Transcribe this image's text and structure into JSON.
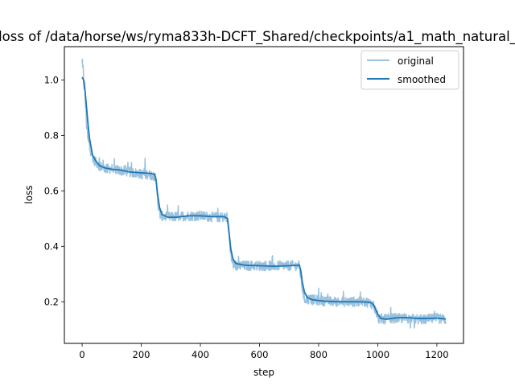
{
  "chart_data": {
    "type": "line",
    "title": "loss of /data/horse/ws/ryma833h-DCFT_Shared/checkpoints/a1_math_natural_",
    "xlabel": "step",
    "ylabel": "loss",
    "xlim": [
      -60,
      1290
    ],
    "ylim": [
      0.05,
      1.12
    ],
    "xticks": [
      0,
      200,
      400,
      600,
      800,
      1000,
      1200
    ],
    "xtick_labels": [
      "0",
      "200",
      "400",
      "600",
      "800",
      "1000",
      "1200"
    ],
    "yticks": [
      0.2,
      0.4,
      0.6,
      0.8,
      1.0
    ],
    "ytick_labels": [
      "0.2",
      "0.4",
      "0.6",
      "0.8",
      "1.0"
    ],
    "grid": false,
    "legend_position": "top-right",
    "series": [
      {
        "name": "original",
        "color": "#9ac1dd",
        "description_points": [
          [
            0,
            1.05
          ],
          [
            5,
            1.01
          ],
          [
            10,
            0.95
          ],
          [
            15,
            0.85
          ],
          [
            20,
            0.78
          ],
          [
            30,
            0.74
          ],
          [
            40,
            0.71
          ],
          [
            60,
            0.69
          ],
          [
            80,
            0.68
          ],
          [
            100,
            0.68
          ],
          [
            120,
            0.675
          ],
          [
            150,
            0.67
          ],
          [
            180,
            0.665
          ],
          [
            200,
            0.66
          ],
          [
            220,
            0.66
          ],
          [
            245,
            0.655
          ],
          [
            252,
            0.62
          ],
          [
            258,
            0.54
          ],
          [
            265,
            0.51
          ],
          [
            300,
            0.505
          ],
          [
            350,
            0.51
          ],
          [
            400,
            0.51
          ],
          [
            450,
            0.505
          ],
          [
            490,
            0.505
          ],
          [
            498,
            0.43
          ],
          [
            505,
            0.35
          ],
          [
            515,
            0.33
          ],
          [
            560,
            0.33
          ],
          [
            620,
            0.33
          ],
          [
            680,
            0.33
          ],
          [
            735,
            0.33
          ],
          [
            743,
            0.26
          ],
          [
            752,
            0.21
          ],
          [
            800,
            0.205
          ],
          [
            850,
            0.2
          ],
          [
            900,
            0.2
          ],
          [
            960,
            0.2
          ],
          [
            985,
            0.19
          ],
          [
            995,
            0.16
          ],
          [
            1005,
            0.135
          ],
          [
            1050,
            0.14
          ],
          [
            1100,
            0.14
          ],
          [
            1150,
            0.135
          ],
          [
            1200,
            0.14
          ],
          [
            1230,
            0.135
          ]
        ]
      },
      {
        "name": "smoothed",
        "color": "#1f77b4",
        "description_points": [
          [
            0,
            1.01
          ],
          [
            5,
            1.0
          ],
          [
            10,
            0.96
          ],
          [
            15,
            0.9
          ],
          [
            20,
            0.84
          ],
          [
            25,
            0.79
          ],
          [
            30,
            0.76
          ],
          [
            35,
            0.73
          ],
          [
            45,
            0.71
          ],
          [
            60,
            0.69
          ],
          [
            80,
            0.682
          ],
          [
            100,
            0.678
          ],
          [
            130,
            0.675
          ],
          [
            160,
            0.668
          ],
          [
            200,
            0.665
          ],
          [
            230,
            0.663
          ],
          [
            245,
            0.66
          ],
          [
            250,
            0.64
          ],
          [
            255,
            0.59
          ],
          [
            262,
            0.54
          ],
          [
            270,
            0.515
          ],
          [
            290,
            0.505
          ],
          [
            320,
            0.505
          ],
          [
            360,
            0.51
          ],
          [
            400,
            0.51
          ],
          [
            440,
            0.507
          ],
          [
            480,
            0.507
          ],
          [
            492,
            0.5
          ],
          [
            497,
            0.45
          ],
          [
            503,
            0.39
          ],
          [
            510,
            0.355
          ],
          [
            520,
            0.338
          ],
          [
            550,
            0.332
          ],
          [
            600,
            0.33
          ],
          [
            650,
            0.328
          ],
          [
            700,
            0.33
          ],
          [
            735,
            0.332
          ],
          [
            740,
            0.31
          ],
          [
            745,
            0.27
          ],
          [
            752,
            0.235
          ],
          [
            762,
            0.215
          ],
          [
            780,
            0.207
          ],
          [
            820,
            0.202
          ],
          [
            880,
            0.2
          ],
          [
            940,
            0.2
          ],
          [
            975,
            0.198
          ],
          [
            985,
            0.19
          ],
          [
            992,
            0.175
          ],
          [
            1000,
            0.155
          ],
          [
            1010,
            0.14
          ],
          [
            1030,
            0.137
          ],
          [
            1060,
            0.142
          ],
          [
            1100,
            0.143
          ],
          [
            1130,
            0.14
          ],
          [
            1160,
            0.14
          ],
          [
            1200,
            0.141
          ],
          [
            1230,
            0.138
          ]
        ]
      }
    ]
  }
}
